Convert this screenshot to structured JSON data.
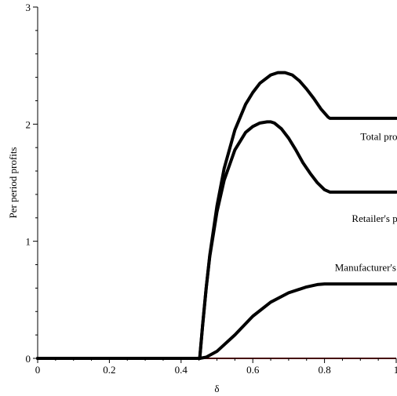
{
  "chart_data": {
    "type": "line",
    "title": "",
    "xlabel": "δ",
    "ylabel": "Per period profits",
    "xlim": [
      0,
      1
    ],
    "ylim": [
      0,
      3
    ],
    "xticks": [
      0,
      0.2,
      0.4,
      0.6,
      0.8,
      1
    ],
    "xtick_labels": [
      "0",
      "0.2",
      "0.4",
      "0.6",
      "0.8",
      "1"
    ],
    "yticks": [
      0,
      1,
      2,
      3
    ],
    "ytick_labels": [
      "0",
      "1",
      "2",
      "3"
    ],
    "grid": false,
    "series": [
      {
        "name": "Total profits",
        "color": "#000000",
        "x": [
          0,
          0.452,
          0.46,
          0.47,
          0.48,
          0.5,
          0.52,
          0.55,
          0.58,
          0.6,
          0.62,
          0.65,
          0.67,
          0.69,
          0.71,
          0.73,
          0.75,
          0.77,
          0.79,
          0.81,
          0.815,
          1
        ],
        "y": [
          0,
          0,
          0.28,
          0.6,
          0.88,
          1.3,
          1.62,
          1.95,
          2.17,
          2.27,
          2.35,
          2.42,
          2.44,
          2.44,
          2.42,
          2.37,
          2.3,
          2.22,
          2.13,
          2.06,
          2.05,
          2.05
        ]
      },
      {
        "name": "Retailer's profits",
        "color": "#000000",
        "x": [
          0,
          0.452,
          0.46,
          0.47,
          0.48,
          0.5,
          0.52,
          0.55,
          0.58,
          0.6,
          0.62,
          0.64,
          0.65,
          0.66,
          0.68,
          0.7,
          0.72,
          0.74,
          0.76,
          0.78,
          0.8,
          0.815,
          1
        ],
        "y": [
          0,
          0,
          0.28,
          0.6,
          0.87,
          1.25,
          1.52,
          1.78,
          1.93,
          1.98,
          2.01,
          2.02,
          2.02,
          2.01,
          1.96,
          1.88,
          1.78,
          1.67,
          1.58,
          1.5,
          1.44,
          1.42,
          1.42
        ]
      },
      {
        "name": "Manufacturer's profits",
        "color": "#000000",
        "x": [
          0,
          0.452,
          0.47,
          0.5,
          0.55,
          0.6,
          0.65,
          0.7,
          0.75,
          0.78,
          0.8,
          0.815,
          1
        ],
        "y": [
          0,
          0,
          0.01,
          0.06,
          0.2,
          0.36,
          0.48,
          0.56,
          0.61,
          0.63,
          0.635,
          0.635,
          0.635
        ]
      }
    ],
    "annotations": [
      {
        "text": "Total profits",
        "x": 0.97,
        "y": 1.9
      },
      {
        "text": "Retailer's profits",
        "x": 0.97,
        "y": 1.2
      },
      {
        "text": "Manufacturer's profits",
        "x": 0.955,
        "y": 0.78
      }
    ]
  }
}
